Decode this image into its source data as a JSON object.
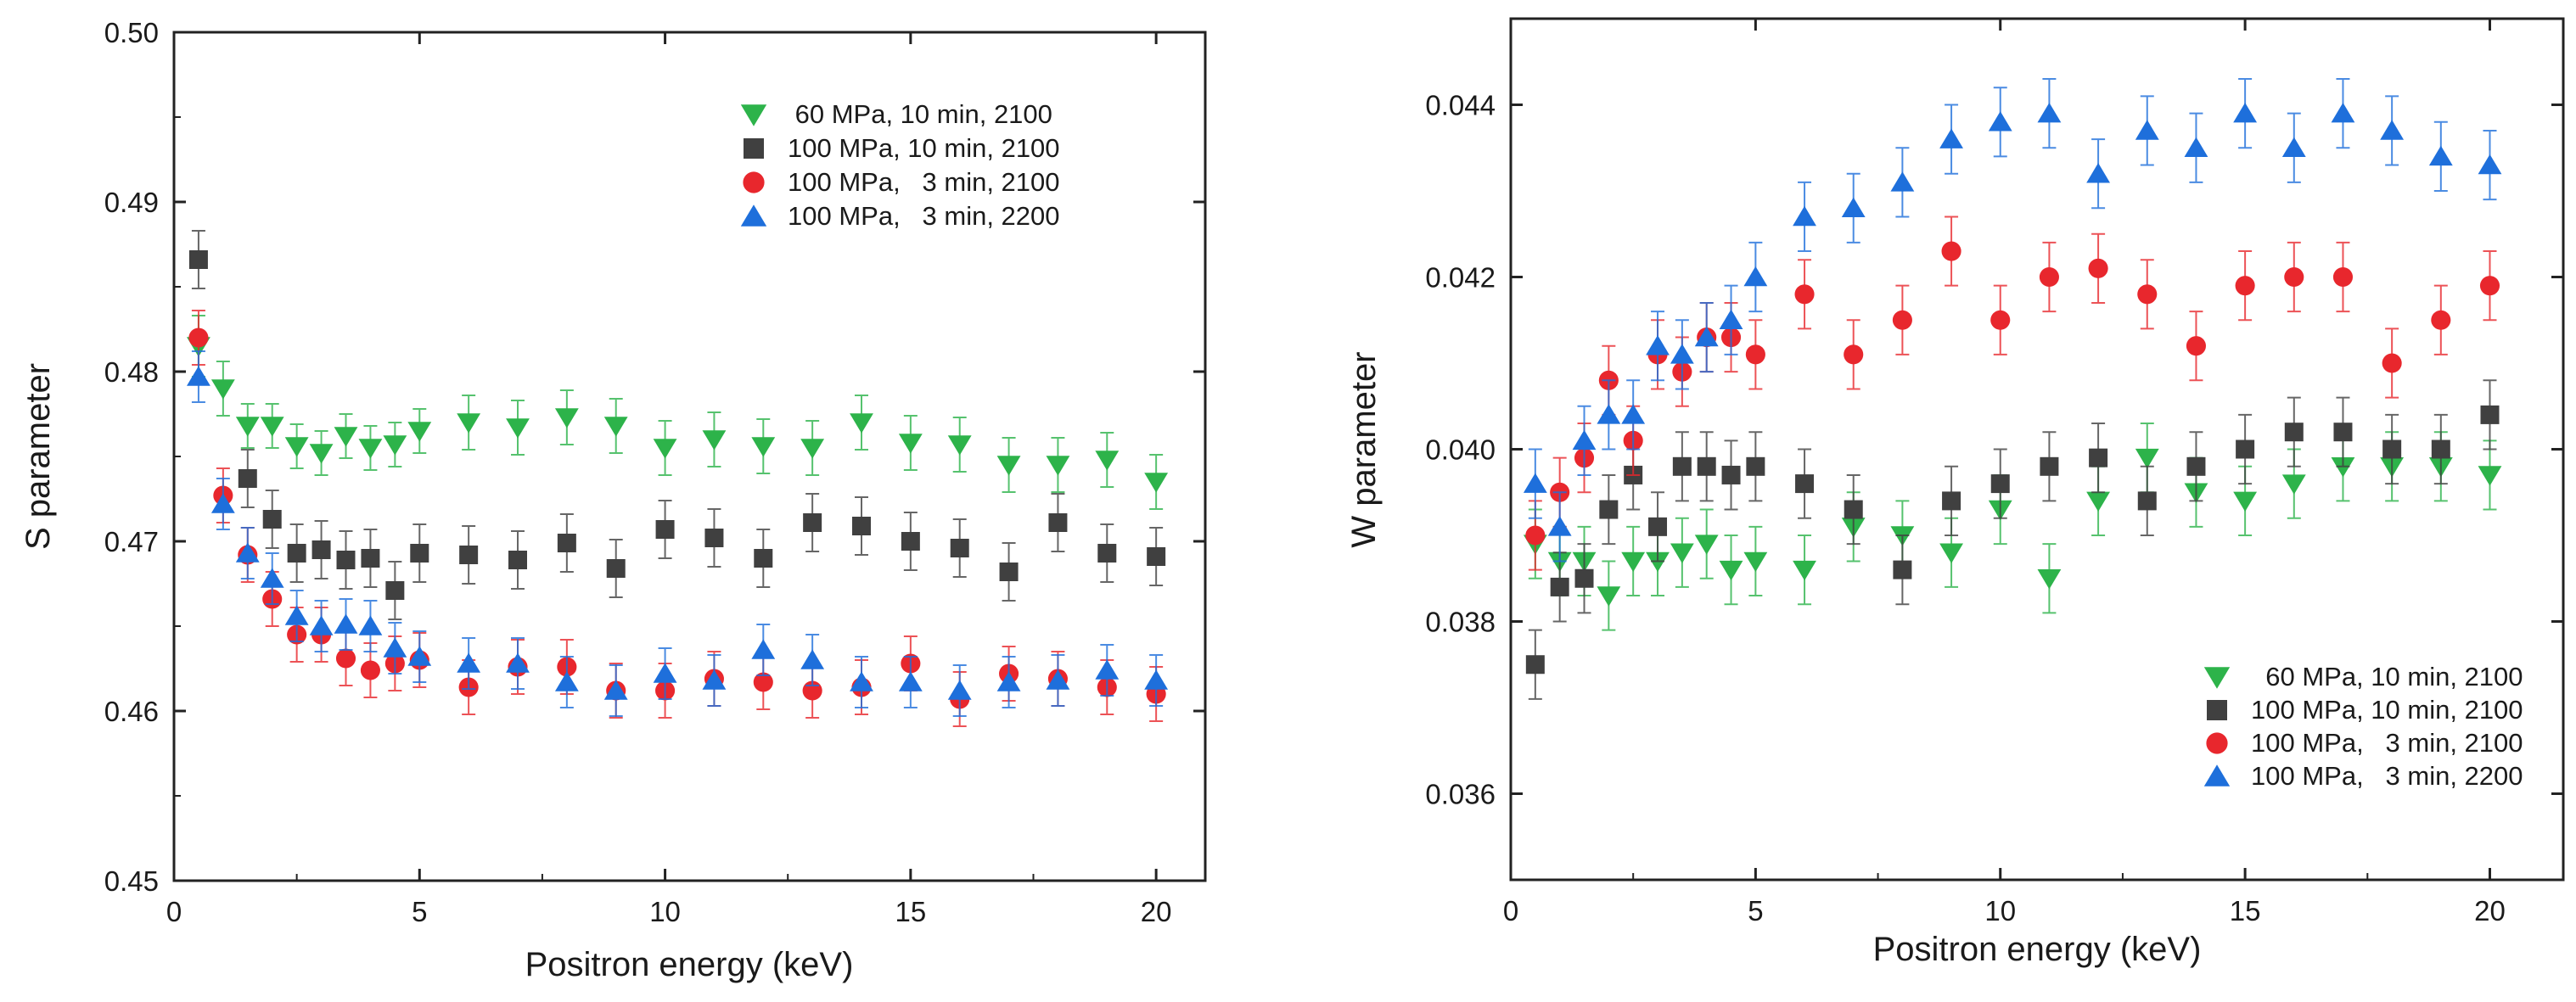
{
  "colors": {
    "green": "#2db34a",
    "dark": "#404040",
    "red": "#e8272d",
    "blue": "#1e6fdb",
    "axis": "#222222"
  },
  "chart_data": [
    {
      "type": "scatter",
      "title": "",
      "xlabel": "Positron energy (keV)",
      "ylabel": "S parameter",
      "xlim": [
        0,
        21
      ],
      "ylim": [
        0.45,
        0.5
      ],
      "xticks": [
        0,
        5,
        10,
        15,
        20
      ],
      "xtick_labels": [
        "0",
        "5",
        "10",
        "15",
        "20"
      ],
      "yticks": [
        0.45,
        0.46,
        0.47,
        0.48,
        0.49,
        0.5
      ],
      "ytick_labels": [
        "0.45",
        "0.46",
        "0.47",
        "0.48",
        "0.49",
        "0.50"
      ],
      "legend_position": "top-right",
      "series": [
        {
          "name": " 60 MPa, 10 min, 2100",
          "color": "green",
          "marker": "triangle-down",
          "x": [
            0.5,
            1,
            1.5,
            2,
            2.5,
            3,
            3.5,
            4,
            4.5,
            5,
            6,
            7,
            8,
            9,
            10,
            11,
            12,
            13,
            14,
            15,
            16,
            17,
            18,
            19,
            20
          ],
          "y": [
            0.4815,
            0.479,
            0.4768,
            0.4768,
            0.4756,
            0.4752,
            0.4762,
            0.4755,
            0.4757,
            0.4765,
            0.477,
            0.4767,
            0.4773,
            0.4768,
            0.4755,
            0.476,
            0.4756,
            0.4755,
            0.477,
            0.4758,
            0.4757,
            0.4745,
            0.4745,
            0.4748,
            0.4735
          ],
          "err": [
            0.0018,
            0.0016,
            0.0013,
            0.0013,
            0.0013,
            0.0013,
            0.0013,
            0.0013,
            0.0013,
            0.0013,
            0.0016,
            0.0016,
            0.0016,
            0.0016,
            0.0016,
            0.0016,
            0.0016,
            0.0016,
            0.0016,
            0.0016,
            0.0016,
            0.0016,
            0.0016,
            0.0016,
            0.0016
          ]
        },
        {
          "name": "100 MPa, 10 min, 2100",
          "color": "dark",
          "marker": "square",
          "x": [
            0.5,
            1.5,
            2,
            2.5,
            3,
            3.5,
            4,
            4.5,
            5,
            6,
            7,
            8,
            9,
            10,
            11,
            12,
            13,
            14,
            15,
            16,
            17,
            18,
            19,
            20
          ],
          "y": [
            0.4866,
            0.4737,
            0.4713,
            0.4693,
            0.4695,
            0.4689,
            0.469,
            0.4671,
            0.4693,
            0.4692,
            0.4689,
            0.4699,
            0.4684,
            0.4707,
            0.4702,
            0.469,
            0.4711,
            0.4709,
            0.47,
            0.4696,
            0.4682,
            0.4711,
            0.4693,
            0.4691
          ],
          "err": [
            0.0017,
            0.0017,
            0.0017,
            0.0017,
            0.0017,
            0.0017,
            0.0017,
            0.0017,
            0.0017,
            0.0017,
            0.0017,
            0.0017,
            0.0017,
            0.0017,
            0.0017,
            0.0017,
            0.0017,
            0.0017,
            0.0017,
            0.0017,
            0.0017,
            0.0017,
            0.0017,
            0.0017
          ]
        },
        {
          "name": "100 MPa,   3 min, 2100",
          "color": "red",
          "marker": "circle",
          "x": [
            0.5,
            1,
            1.5,
            2,
            2.5,
            3,
            3.5,
            4,
            4.5,
            5,
            6,
            7,
            8,
            9,
            10,
            11,
            12,
            13,
            14,
            15,
            16,
            17,
            18,
            19,
            20
          ],
          "y": [
            0.482,
            0.4727,
            0.4692,
            0.4666,
            0.4645,
            0.4645,
            0.4631,
            0.4624,
            0.4628,
            0.463,
            0.4614,
            0.4626,
            0.4626,
            0.4612,
            0.4612,
            0.4619,
            0.4617,
            0.4612,
            0.4614,
            0.4628,
            0.4607,
            0.4622,
            0.4619,
            0.4614,
            0.461
          ],
          "err": [
            0.0016,
            0.0016,
            0.0016,
            0.0016,
            0.0016,
            0.0016,
            0.0016,
            0.0016,
            0.0016,
            0.0016,
            0.0016,
            0.0016,
            0.0016,
            0.0016,
            0.0016,
            0.0016,
            0.0016,
            0.0016,
            0.0016,
            0.0016,
            0.0016,
            0.0016,
            0.0016,
            0.0016,
            0.0016
          ]
        },
        {
          "name": "100 MPa,   3 min, 2200",
          "color": "blue",
          "marker": "triangle-up",
          "x": [
            0.5,
            1,
            1.5,
            2,
            2.5,
            3,
            3.5,
            4,
            4.5,
            5,
            6,
            7,
            8,
            9,
            10,
            11,
            12,
            13,
            14,
            15,
            16,
            17,
            18,
            19,
            20
          ],
          "y": [
            0.4797,
            0.4722,
            0.4693,
            0.4678,
            0.4656,
            0.465,
            0.4651,
            0.465,
            0.4637,
            0.4632,
            0.4628,
            0.4628,
            0.4617,
            0.4612,
            0.4622,
            0.4618,
            0.4636,
            0.463,
            0.4617,
            0.4617,
            0.4612,
            0.4617,
            0.4618,
            0.4624,
            0.4618
          ],
          "err": [
            0.0015,
            0.0015,
            0.0015,
            0.0015,
            0.0015,
            0.0015,
            0.0015,
            0.0015,
            0.0015,
            0.0015,
            0.0015,
            0.0015,
            0.0015,
            0.0015,
            0.0015,
            0.0015,
            0.0015,
            0.0015,
            0.0015,
            0.0015,
            0.0015,
            0.0015,
            0.0015,
            0.0015,
            0.0015
          ]
        }
      ]
    },
    {
      "type": "scatter",
      "title": "",
      "xlabel": "Positron energy (keV)",
      "ylabel": "W parameter",
      "xlim": [
        0,
        21.5
      ],
      "ylim": [
        0.035,
        0.045
      ],
      "xticks": [
        0,
        5,
        10,
        15,
        20
      ],
      "xtick_labels": [
        "0",
        "5",
        "10",
        "15",
        "20"
      ],
      "yticks": [
        0.036,
        0.038,
        0.04,
        0.042,
        0.044
      ],
      "ytick_labels": [
        "0.036",
        "0.038",
        "0.040",
        "0.042",
        "0.044"
      ],
      "legend_position": "bottom-right",
      "series": [
        {
          "name": "  60 MPa, 10 min, 2100",
          "color": "green",
          "marker": "triangle-down",
          "x": [
            0.5,
            1,
            1.5,
            2,
            2.5,
            3,
            3.5,
            4,
            4.5,
            5,
            6,
            7,
            8,
            9,
            10,
            11,
            12,
            13,
            14,
            15,
            16,
            17,
            18,
            19,
            20
          ],
          "y": [
            0.0389,
            0.0387,
            0.0387,
            0.0383,
            0.0387,
            0.0387,
            0.0388,
            0.0389,
            0.0386,
            0.0387,
            0.0386,
            0.0391,
            0.039,
            0.0388,
            0.0393,
            0.0385,
            0.0394,
            0.0399,
            0.0395,
            0.0394,
            0.0396,
            0.0398,
            0.0398,
            0.0398,
            0.0397
          ],
          "err": [
            0.0004,
            0.0004,
            0.0004,
            0.0004,
            0.0004,
            0.0004,
            0.0004,
            0.0004,
            0.0004,
            0.0004,
            0.0004,
            0.0004,
            0.0004,
            0.0004,
            0.0004,
            0.0004,
            0.0004,
            0.0004,
            0.0004,
            0.0004,
            0.0004,
            0.0004,
            0.0004,
            0.0004,
            0.0004
          ]
        },
        {
          "name": "100 MPa, 10 min, 2100",
          "color": "dark",
          "marker": "square",
          "x": [
            0.5,
            1,
            1.5,
            2,
            2.5,
            3,
            3.5,
            4,
            4.5,
            5,
            6,
            7,
            8,
            9,
            10,
            11,
            12,
            13,
            14,
            15,
            16,
            17,
            18,
            19,
            20
          ],
          "y": [
            0.0375,
            0.0384,
            0.0385,
            0.0393,
            0.0397,
            0.0391,
            0.0398,
            0.0398,
            0.0397,
            0.0398,
            0.0396,
            0.0393,
            0.0386,
            0.0394,
            0.0396,
            0.0398,
            0.0399,
            0.0394,
            0.0398,
            0.04,
            0.0402,
            0.0402,
            0.04,
            0.04,
            0.0404
          ],
          "err": [
            0.0004,
            0.0004,
            0.0004,
            0.0004,
            0.0004,
            0.0004,
            0.0004,
            0.0004,
            0.0004,
            0.0004,
            0.0004,
            0.0004,
            0.0004,
            0.0004,
            0.0004,
            0.0004,
            0.0004,
            0.0004,
            0.0004,
            0.0004,
            0.0004,
            0.0004,
            0.0004,
            0.0004,
            0.0004
          ]
        },
        {
          "name": "100 MPa,   3 min, 2100",
          "color": "red",
          "marker": "circle",
          "x": [
            0.5,
            1,
            1.5,
            2,
            2.5,
            3,
            3.5,
            4,
            4.5,
            5,
            6,
            7,
            8,
            9,
            10,
            11,
            12,
            13,
            14,
            15,
            16,
            17,
            18,
            19,
            20
          ],
          "y": [
            0.039,
            0.0395,
            0.0399,
            0.0408,
            0.0401,
            0.0411,
            0.0409,
            0.0413,
            0.0413,
            0.0411,
            0.0418,
            0.0411,
            0.0415,
            0.0423,
            0.0415,
            0.042,
            0.0421,
            0.0418,
            0.0412,
            0.0419,
            0.042,
            0.042,
            0.041,
            0.0415,
            0.0419
          ],
          "err": [
            0.0004,
            0.0004,
            0.0004,
            0.0004,
            0.0004,
            0.0004,
            0.0004,
            0.0004,
            0.0004,
            0.0004,
            0.0004,
            0.0004,
            0.0004,
            0.0004,
            0.0004,
            0.0004,
            0.0004,
            0.0004,
            0.0004,
            0.0004,
            0.0004,
            0.0004,
            0.0004,
            0.0004,
            0.0004
          ]
        },
        {
          "name": "100 MPa,   3 min, 2200",
          "color": "blue",
          "marker": "triangle-up",
          "x": [
            0.5,
            1,
            1.5,
            2,
            2.5,
            3,
            3.5,
            4,
            4.5,
            5,
            6,
            7,
            8,
            9,
            10,
            11,
            12,
            13,
            14,
            15,
            16,
            17,
            18,
            19,
            20
          ],
          "y": [
            0.0396,
            0.0391,
            0.0401,
            0.0404,
            0.0404,
            0.0412,
            0.0411,
            0.0413,
            0.0415,
            0.042,
            0.0427,
            0.0428,
            0.0431,
            0.0436,
            0.0438,
            0.0439,
            0.0432,
            0.0437,
            0.0435,
            0.0439,
            0.0435,
            0.0439,
            0.0437,
            0.0434,
            0.0433
          ],
          "err": [
            0.0004,
            0.0004,
            0.0004,
            0.0004,
            0.0004,
            0.0004,
            0.0004,
            0.0004,
            0.0004,
            0.0004,
            0.0004,
            0.0004,
            0.0004,
            0.0004,
            0.0004,
            0.0004,
            0.0004,
            0.0004,
            0.0004,
            0.0004,
            0.0004,
            0.0004,
            0.0004,
            0.0004,
            0.0004
          ]
        }
      ]
    }
  ]
}
